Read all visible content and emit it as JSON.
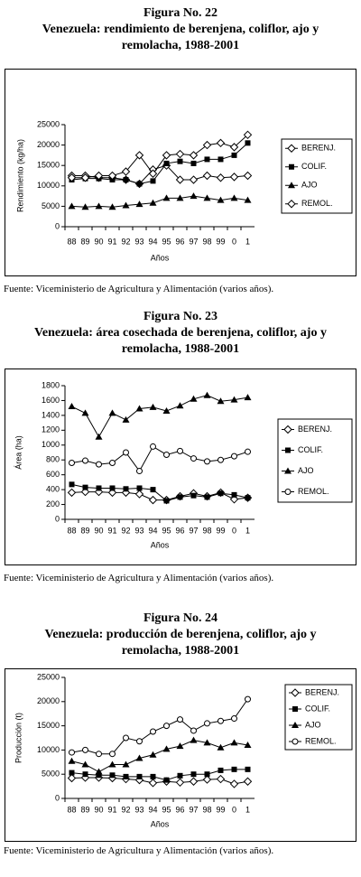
{
  "chart_data": [
    {
      "type": "line",
      "title": "Figura No. 22",
      "subtitle": "Venezuela: rendimiento de berenjena, coliflor, ajo y remolacha, 1988-2001",
      "y_label": "Rendimiento (kg/ha)",
      "x_label": "Años",
      "legend": "right",
      "categories": [
        "88",
        "89",
        "90",
        "91",
        "92",
        "93",
        "94",
        "95",
        "96",
        "97",
        "98",
        "99",
        "0",
        "1"
      ],
      "ylim": [
        0,
        25000
      ],
      "yticks": [
        0,
        5000,
        10000,
        15000,
        20000,
        25000
      ],
      "series": [
        {
          "name": "BERENJ.",
          "color": "#000000",
          "marker": "diamond-open",
          "values": [
            12500,
            12500,
            12000,
            12000,
            11500,
            10500,
            14000,
            15000,
            11500,
            11500,
            12500,
            12000,
            12200,
            12500
          ]
        },
        {
          "name": "COLIF.",
          "color": "#000000",
          "marker": "square",
          "values": [
            11500,
            11800,
            11800,
            11500,
            11500,
            10500,
            11200,
            15500,
            16000,
            15500,
            16500,
            16500,
            17500,
            20500
          ]
        },
        {
          "name": "AJO",
          "color": "#000000",
          "marker": "triangle",
          "values": [
            5000,
            4800,
            5000,
            4800,
            5200,
            5500,
            5800,
            7000,
            7000,
            7500,
            7000,
            6500,
            7000,
            6500
          ]
        },
        {
          "name": "REMOL.",
          "color": "#000000",
          "marker": "diamond-open",
          "values": [
            12000,
            12000,
            12500,
            12500,
            13500,
            17500,
            13000,
            17500,
            17800,
            17500,
            20000,
            20500,
            19500,
            22500
          ]
        }
      ],
      "source": "Fuente: Viceministerio de Agricultura y Alimentación (varios años)."
    },
    {
      "type": "line",
      "title": "Figura No. 23",
      "subtitle": "Venezuela: área cosechada de berenjena, coliflor, ajo y remolacha, 1988-2001",
      "y_label": "Área (ha)",
      "x_label": "Años",
      "legend": "right",
      "categories": [
        "88",
        "89",
        "90",
        "91",
        "92",
        "93",
        "94",
        "95",
        "96",
        "97",
        "98",
        "99",
        "0",
        "1"
      ],
      "ylim": [
        0,
        1800
      ],
      "yticks": [
        0,
        200,
        400,
        600,
        800,
        1000,
        1200,
        1400,
        1600,
        1800
      ],
      "series": [
        {
          "name": "BERENJ.",
          "color": "#000000",
          "marker": "diamond-open",
          "values": [
            360,
            370,
            370,
            360,
            360,
            340,
            260,
            260,
            310,
            350,
            310,
            360,
            270,
            290
          ]
        },
        {
          "name": "COLIF.",
          "color": "#000000",
          "marker": "square",
          "values": [
            470,
            430,
            420,
            420,
            410,
            420,
            400,
            250,
            300,
            320,
            300,
            350,
            330,
            290
          ]
        },
        {
          "name": "AJO",
          "color": "#000000",
          "marker": "triangle",
          "values": [
            1520,
            1430,
            1110,
            1430,
            1340,
            1490,
            1510,
            1460,
            1530,
            1620,
            1670,
            1590,
            1610,
            1640
          ]
        },
        {
          "name": "REMOL.",
          "color": "#000000",
          "marker": "circle-open",
          "values": [
            760,
            790,
            740,
            760,
            900,
            650,
            980,
            870,
            920,
            820,
            780,
            800,
            850,
            910
          ]
        }
      ],
      "source": "Fuente: Viceministerio de Agricultura y Alimentación (varios años)."
    },
    {
      "type": "line",
      "title": "Figura No. 24",
      "subtitle": "Venezuela: producción de berenjena, coliflor, ajo y remolacha, 1988-2001",
      "y_label": "Producción (t)",
      "x_label": "Años",
      "legend": "right",
      "categories": [
        "88",
        "89",
        "90",
        "91",
        "92",
        "93",
        "94",
        "95",
        "96",
        "97",
        "98",
        "99",
        "0",
        "1"
      ],
      "ylim": [
        0,
        25000
      ],
      "yticks": [
        0,
        5000,
        10000,
        15000,
        20000,
        25000
      ],
      "series": [
        {
          "name": "BERENJ.",
          "color": "#000000",
          "marker": "diamond-open",
          "values": [
            4200,
            4300,
            4300,
            4200,
            4000,
            3800,
            3200,
            3500,
            3300,
            3500,
            3900,
            4000,
            3000,
            3500
          ]
        },
        {
          "name": "COLIF.",
          "color": "#000000",
          "marker": "square",
          "values": [
            5300,
            5000,
            4800,
            4800,
            4500,
            4500,
            4500,
            3800,
            4700,
            5000,
            5000,
            5800,
            6000,
            6000
          ]
        },
        {
          "name": "AJO",
          "color": "#000000",
          "marker": "triangle",
          "values": [
            7700,
            7000,
            5500,
            7000,
            7000,
            8300,
            9000,
            10200,
            10800,
            12000,
            11500,
            10500,
            11500,
            11000
          ]
        },
        {
          "name": "REMOL.",
          "color": "#000000",
          "marker": "circle-open",
          "values": [
            9500,
            10000,
            9200,
            9200,
            12500,
            11800,
            13800,
            15000,
            16300,
            14000,
            15500,
            16000,
            16500,
            20500
          ]
        }
      ],
      "source": "Fuente: Viceministerio de Agricultura y Alimentación (varios años)."
    }
  ]
}
